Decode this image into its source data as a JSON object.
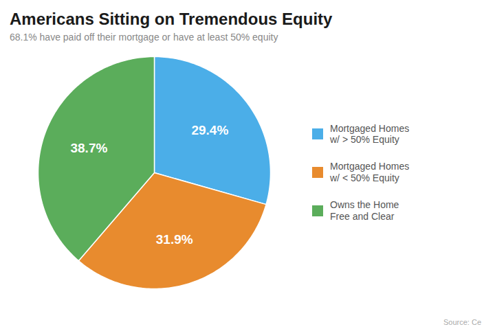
{
  "chart_data": {
    "type": "pie",
    "title": "Americans Sitting on Tremendous Equity",
    "subtitle": "68.1% have paid off their mortgage or have at least 50% equity",
    "categories": [
      "Mortgaged Homes\nw/ > 50% Equity",
      "Mortgaged Homes\nw/ < 50% Equity",
      "Owns the Home\nFree and Clear"
    ],
    "values": [
      29.4,
      31.9,
      38.7
    ],
    "value_labels": [
      "29.4%",
      "31.9%",
      "38.7%"
    ],
    "colors": [
      "#4BAEE8",
      "#E88B2E",
      "#5BAD5B"
    ],
    "data_labels": true,
    "legend": "right",
    "source": "Source: Ce"
  }
}
